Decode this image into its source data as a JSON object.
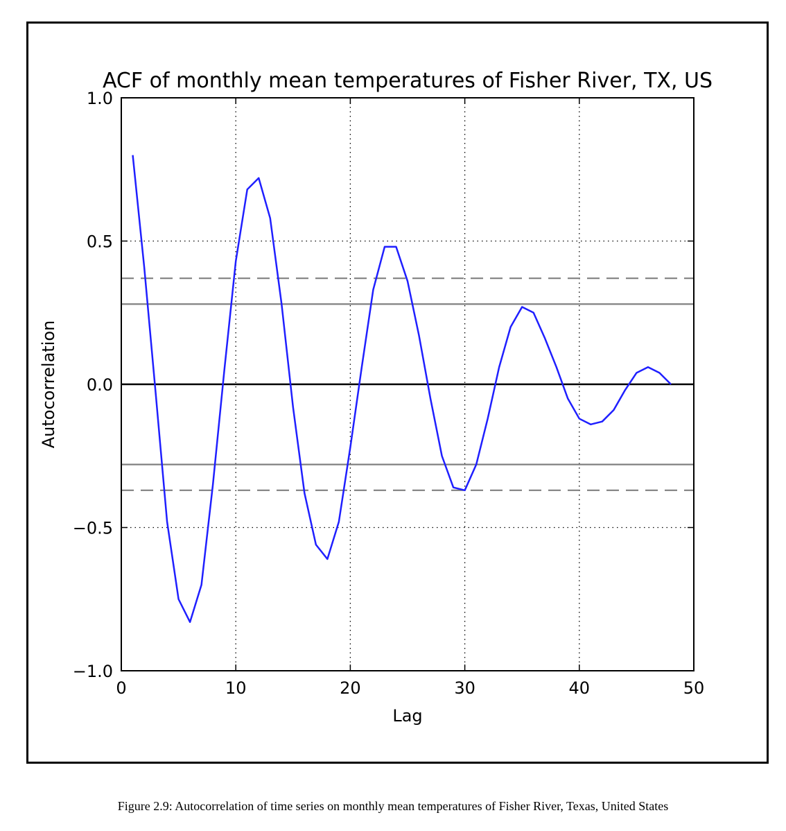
{
  "caption": "Figure 2.9: Autocorrelation of time series on monthly mean temperatures of Fisher River, Texas, United States",
  "chart_data": {
    "type": "line",
    "title": "ACF of monthly mean temperatures of Fisher River, TX, US",
    "xlabel": "Lag",
    "ylabel": "Autocorrelation",
    "xlim": [
      0,
      50
    ],
    "ylim": [
      -1.0,
      1.0
    ],
    "xticks": [
      "0",
      "10",
      "20",
      "30",
      "40",
      "50"
    ],
    "yticks": [
      "−1.0",
      "−0.5",
      "0.0",
      "0.5",
      "1.0"
    ],
    "xtick_values": [
      0,
      10,
      20,
      30,
      40,
      50
    ],
    "ytick_values": [
      -1.0,
      -0.5,
      0.0,
      0.5,
      1.0
    ],
    "grid": true,
    "series": [
      {
        "color": "#1f1fff",
        "x": [
          1,
          2,
          3,
          4,
          5,
          6,
          7,
          8,
          9,
          10,
          11,
          12,
          13,
          14,
          15,
          16,
          17,
          18,
          19,
          20,
          21,
          22,
          23,
          24,
          25,
          26,
          27,
          28,
          29,
          30,
          31,
          32,
          33,
          34,
          35,
          36,
          37,
          38,
          39,
          40,
          41,
          42,
          43,
          44,
          45,
          46,
          47,
          48
        ],
        "y": [
          0.8,
          0.41,
          -0.03,
          -0.48,
          -0.75,
          -0.83,
          -0.7,
          -0.35,
          0.05,
          0.43,
          0.68,
          0.72,
          0.58,
          0.28,
          -0.08,
          -0.38,
          -0.56,
          -0.61,
          -0.48,
          -0.22,
          0.06,
          0.33,
          0.48,
          0.48,
          0.36,
          0.17,
          -0.05,
          -0.25,
          -0.36,
          -0.37,
          -0.28,
          -0.12,
          0.06,
          0.2,
          0.27,
          0.25,
          0.16,
          0.06,
          -0.05,
          -0.12,
          -0.14,
          -0.13,
          -0.09,
          -0.02,
          0.04,
          0.06,
          0.04,
          0.0
        ]
      }
    ],
    "reference_lines": [
      {
        "y": 0.0,
        "style": "solid",
        "color": "#000000"
      },
      {
        "y": 0.28,
        "style": "solid",
        "color": "#808080"
      },
      {
        "y": -0.28,
        "style": "solid",
        "color": "#808080"
      },
      {
        "y": 0.37,
        "style": "dashed",
        "color": "#808080"
      },
      {
        "y": -0.37,
        "style": "dashed",
        "color": "#808080"
      }
    ]
  }
}
